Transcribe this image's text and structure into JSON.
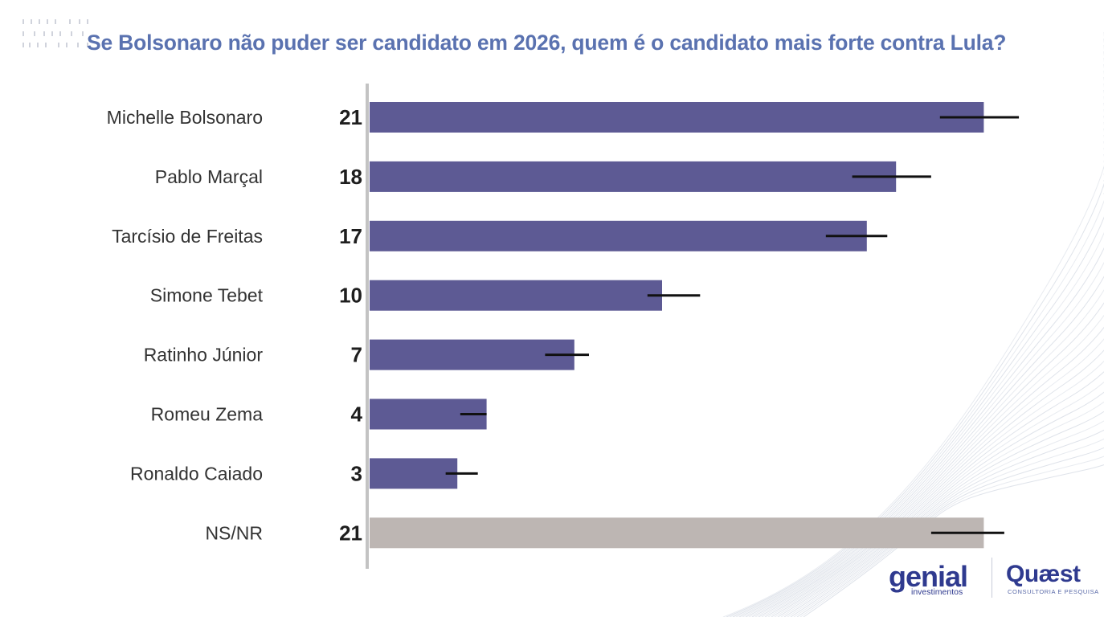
{
  "title": "Se Bolsonaro não puder ser candidato em 2026, quem é o candidato mais forte contra Lula?",
  "chart_data": {
    "type": "bar",
    "orientation": "horizontal",
    "categories": [
      "Michelle Bolsonaro",
      "Pablo Marçal",
      "Tarcísio de Freitas",
      "Simone Tebet",
      "Ratinho Júnior",
      "Romeu Zema",
      "Ronaldo Caiado",
      "NS/NR"
    ],
    "values": [
      21,
      18,
      17,
      10,
      7,
      4,
      3,
      21
    ],
    "value_labels": [
      "21",
      "18",
      "17",
      "10",
      "7",
      "4",
      "3",
      "21"
    ],
    "error_bars": [
      [
        19.5,
        22.2
      ],
      [
        16.5,
        19.2
      ],
      [
        15.6,
        17.7
      ],
      [
        9.5,
        11.3
      ],
      [
        6.0,
        7.5
      ],
      [
        3.1,
        4.0
      ],
      [
        2.6,
        3.7
      ],
      [
        19.2,
        21.7
      ]
    ],
    "ylim": [
      0,
      22.5
    ],
    "grid": false,
    "legend": "none",
    "bar_colors": [
      "#5d5a94",
      "#5d5a94",
      "#5d5a94",
      "#5d5a94",
      "#5d5a94",
      "#5d5a94",
      "#5d5a94",
      "#bdb6b3"
    ]
  },
  "logos": {
    "genial_main": "genial",
    "genial_sub": "investimentos",
    "quaest_main": "Quæst",
    "quaest_sub": "CONSULTORIA E PESQUISA"
  },
  "colors": {
    "title": "#5a72b0",
    "bar": "#5d5a94",
    "bar_muted": "#bdb6b3",
    "axis": "#c3c3c3",
    "error": "#111111",
    "logo": "#2f3a8f"
  }
}
